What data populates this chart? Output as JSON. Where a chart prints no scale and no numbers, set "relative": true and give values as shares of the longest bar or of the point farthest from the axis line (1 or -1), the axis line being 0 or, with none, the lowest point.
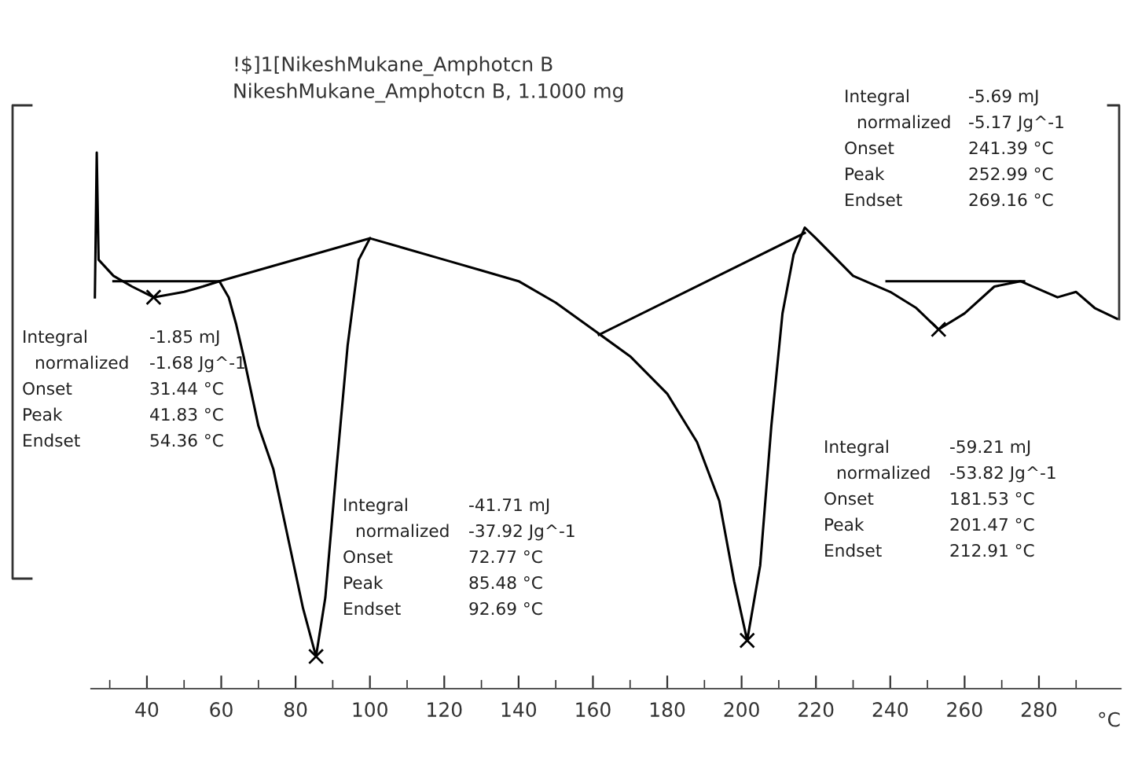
{
  "chart_data": {
    "type": "line",
    "relative": true,
    "title": "!$]1[NikeshMukane_Amphotcn B",
    "subtitle": "NikeshMukane_Amphotcn B, 1.1000 mg",
    "xlabel": "°C",
    "xlim": [
      25,
      302
    ],
    "xticks": [
      {
        "value": 30,
        "label": null
      },
      40,
      {
        "value": 50,
        "label": null
      },
      60,
      {
        "value": 70,
        "label": null
      },
      80,
      {
        "value": 90,
        "label": null
      },
      100,
      {
        "value": 110,
        "label": null
      },
      120,
      {
        "value": 130,
        "label": null
      },
      140,
      {
        "value": 150,
        "label": null
      },
      160,
      {
        "value": 170,
        "label": null
      },
      180,
      {
        "value": 190,
        "label": null
      },
      200,
      {
        "value": 210,
        "label": null
      },
      220,
      {
        "value": 230,
        "label": null
      },
      240,
      {
        "value": 250,
        "label": null
      },
      260,
      {
        "value": 270,
        "label": null
      },
      280,
      {
        "value": 290,
        "label": null
      }
    ],
    "tick_labels": "x",
    "line_style": "solid",
    "series": [
      {
        "color": "#000000",
        "marker": "none",
        "x": [
          26.0,
          26.5,
          27.0,
          31,
          36,
          41.8,
          50,
          55,
          59.5,
          62,
          64,
          66,
          70,
          74,
          78,
          82,
          85.5,
          88,
          91,
          94,
          97,
          100,
          110,
          120,
          130,
          140,
          150,
          160,
          170,
          180,
          188,
          194,
          198,
          201.5,
          205,
          208,
          211,
          214,
          217,
          220,
          230,
          240,
          247,
          253,
          260,
          268,
          275,
          285,
          290,
          295,
          301
        ],
        "values": [
          0.73,
          1.0,
          0.8,
          0.77,
          0.75,
          0.73,
          0.74,
          0.75,
          0.76,
          0.73,
          0.68,
          0.62,
          0.49,
          0.41,
          0.28,
          0.15,
          0.06,
          0.17,
          0.41,
          0.64,
          0.8,
          0.84,
          0.82,
          0.8,
          0.78,
          0.76,
          0.72,
          0.67,
          0.62,
          0.55,
          0.46,
          0.35,
          0.2,
          0.09,
          0.23,
          0.49,
          0.7,
          0.81,
          0.86,
          0.84,
          0.77,
          0.74,
          0.71,
          0.67,
          0.7,
          0.75,
          0.76,
          0.73,
          0.74,
          0.71,
          0.69
        ]
      },
      {
        "color": "#000000",
        "marker": "none",
        "x": [
          31,
          59.5,
          100
        ],
        "values": [
          0.76,
          0.76,
          0.84
        ]
      },
      {
        "color": "#000000",
        "marker": "none",
        "x": [
          161.6,
          217
        ],
        "values": [
          0.66,
          0.85
        ]
      },
      {
        "color": "#000000",
        "marker": "none",
        "x": [
          239,
          276
        ],
        "values": [
          0.76,
          0.76
        ]
      },
      {
        "type": "scatter",
        "color": "#000000",
        "marker": "cross",
        "x": [
          41.8,
          85.5,
          201.5,
          253
        ],
        "values": [
          0.73,
          0.06,
          0.09,
          0.67
        ]
      }
    ],
    "annotations": [
      "Integral  -1.85 mJ",
      "  normalized  -1.68 Jg^-1",
      "Onset  31.44 °C",
      "Peak  41.83 °C",
      "Endset  54.36 °C",
      "Integral  -41.71 mJ",
      "  normalized  -37.92 Jg^-1",
      "Onset  72.77 °C",
      "Peak  85.48 °C",
      "Endset  92.69 °C",
      "Integral  -59.21 mJ",
      "  normalized  -53.82 Jg^-1",
      "Onset  181.53 °C",
      "Peak  201.47 °C",
      "Endset  212.91 °C",
      "Integral  -5.69 mJ",
      "  normalized  -5.17 Jg^-1",
      "Onset  241.39 °C",
      "Peak  252.99 °C",
      "Endset  269.16 °C"
    ]
  }
}
